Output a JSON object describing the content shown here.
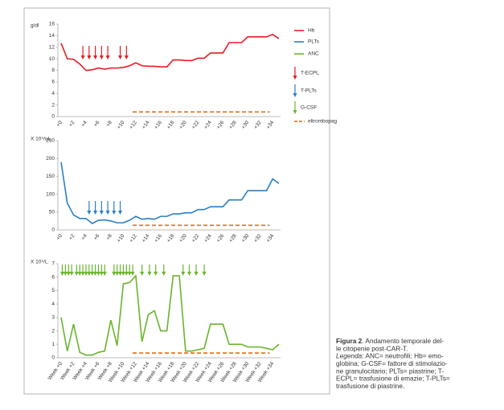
{
  "chart_data": [
    {
      "type": "line",
      "y_label": "g/dl",
      "categories": [
        "+0",
        null,
        "+2",
        null,
        "+4",
        null,
        "+6",
        null,
        "+8",
        null,
        "+10",
        null,
        "+12",
        null,
        "+14",
        null,
        "+16",
        null,
        "+18",
        null,
        "+20",
        null,
        "+22",
        null,
        "+24",
        null,
        "+26",
        null,
        "+28",
        null,
        "+30",
        null,
        "+32",
        null,
        "+34",
        null
      ],
      "ylim": [
        0,
        16
      ],
      "yticks": [
        0,
        2,
        4,
        6,
        8,
        10,
        12,
        14,
        16
      ],
      "series": [
        {
          "name": "Hb",
          "color": "#e31e24",
          "values": [
            12.7,
            10,
            9.9,
            9.1,
            8,
            8.1,
            8.4,
            8.2,
            8.4,
            8.4,
            8.5,
            8.8,
            9.3,
            8.8,
            8.7,
            8.7,
            8.6,
            8.6,
            9.8,
            9.8,
            9.7,
            9.7,
            10.1,
            10.1,
            11,
            11,
            11,
            12.8,
            12.8,
            12.8,
            13.8,
            13.8,
            13.8,
            13.8,
            14.2,
            13.5
          ]
        }
      ],
      "arrows": {
        "color": "#e31e24",
        "days": [
          3.5,
          4.5,
          5.5,
          6.5,
          7.5,
          9.5,
          10.5
        ]
      },
      "eltrombopag": {
        "color": "#e87722",
        "start": 11.5,
        "end": 33.5,
        "level": 0.8
      }
    },
    {
      "type": "line",
      "y_label": "X 10⁹/uL",
      "categories": [
        "+0",
        null,
        "+2",
        null,
        "+4",
        null,
        "+6",
        null,
        "+8",
        null,
        "+10",
        null,
        "+12",
        null,
        "+14",
        null,
        "+16",
        null,
        "+18",
        null,
        "+20",
        null,
        "+22",
        null,
        "+24",
        null,
        "+26",
        null,
        "+28",
        null,
        "+30",
        null,
        "+32",
        null,
        "+34",
        null
      ],
      "ylim": [
        0,
        250
      ],
      "yticks": [
        0,
        50,
        100,
        150,
        200,
        250
      ],
      "series": [
        {
          "name": "PLTs",
          "color": "#2a7fc1",
          "values": [
            190,
            75,
            42,
            32,
            32,
            18,
            27,
            28,
            25,
            20,
            20,
            27,
            38,
            30,
            32,
            30,
            38,
            38,
            45,
            45,
            48,
            48,
            57,
            57,
            65,
            65,
            65,
            84,
            84,
            84,
            110,
            110,
            110,
            110,
            143,
            130
          ]
        }
      ],
      "arrows": {
        "color": "#2a7fc1",
        "days": [
          4.5,
          5.5,
          6.5,
          7.5,
          8.5,
          9.5
        ]
      },
      "eltrombopag": {
        "color": "#e87722",
        "start": 11.5,
        "end": 33.5,
        "level": 13
      }
    },
    {
      "type": "line",
      "y_label": "X 10⁹/L",
      "categories": [
        "Week +0",
        null,
        "Week +2",
        null,
        "Week +4",
        null,
        "Week +6",
        null,
        "Week +8",
        null,
        "Week +10",
        null,
        "Week +12",
        null,
        "Week +14",
        null,
        "Week +16",
        null,
        "Week +18",
        null,
        "Week +20",
        null,
        "Week +22",
        null,
        "Week +24",
        null,
        "Week +26",
        null,
        "Week +28",
        null,
        "Week +30",
        null,
        "Week +32",
        null,
        "Week +34",
        null
      ],
      "ylim": [
        0,
        7
      ],
      "yticks": [
        0,
        1,
        2,
        3,
        4,
        5,
        6,
        7
      ],
      "series": [
        {
          "name": "ANC",
          "color": "#6ab42d",
          "values": [
            3,
            0.5,
            2.5,
            0.4,
            0.2,
            0.2,
            0.4,
            0.5,
            2.8,
            0.9,
            5.5,
            5.6,
            6.1,
            1.2,
            3.2,
            3.5,
            2,
            2,
            6.1,
            6.1,
            0.5,
            0.5,
            0.6,
            0.7,
            2.5,
            2.5,
            2.5,
            1,
            1,
            1,
            0.8,
            0.8,
            0.8,
            0.7,
            0.6,
            1
          ]
        }
      ],
      "arrows": {
        "color": "#6ab42d",
        "days": [
          0.2,
          0.7,
          1.2,
          1.7,
          2.5,
          3,
          3.5,
          4,
          4.5,
          5,
          5.5,
          6,
          6.5,
          7,
          8.5,
          9,
          9.5,
          10,
          10.5,
          11,
          11.5,
          13,
          14.2,
          15.2,
          16.5,
          19.6,
          20.6,
          21.7,
          23
        ]
      },
      "eltrombopag": {
        "color": "#e87722",
        "start": 11.5,
        "end": 33.5,
        "level": 0.35
      }
    }
  ],
  "legend": [
    {
      "name": "Hb",
      "color": "#e31e24",
      "kind": "line"
    },
    {
      "name": "PLTs",
      "color": "#2a7fc1",
      "kind": "line"
    },
    {
      "name": "ANC",
      "color": "#6ab42d",
      "kind": "line"
    },
    {
      "name": "T-ECPL",
      "color": "#e31e24",
      "kind": "arrow"
    },
    {
      "name": "T-PLTs",
      "color": "#2a7fc1",
      "kind": "arrow"
    },
    {
      "name": "G-CSF",
      "color": "#6ab42d",
      "kind": "arrow"
    },
    {
      "name": "eltrombopag",
      "color": "#e87722",
      "kind": "dashed"
    }
  ],
  "caption": {
    "label": "Figura 2",
    "lines": [
      ". Andamento temporale del-",
      "le citopenie post-CAR-T."
    ],
    "legend_label": "Legenda",
    "legend_lines": [
      ": ANC= neutrofili; Hb= emo-",
      "globina; G-CSF= fattore di stimolazio-",
      "ne granulocitario; PLTs= piastrine; T-",
      "ECPL= trasfusione di emazie; T-PLTs=",
      "trasfusione di piastrine."
    ]
  }
}
